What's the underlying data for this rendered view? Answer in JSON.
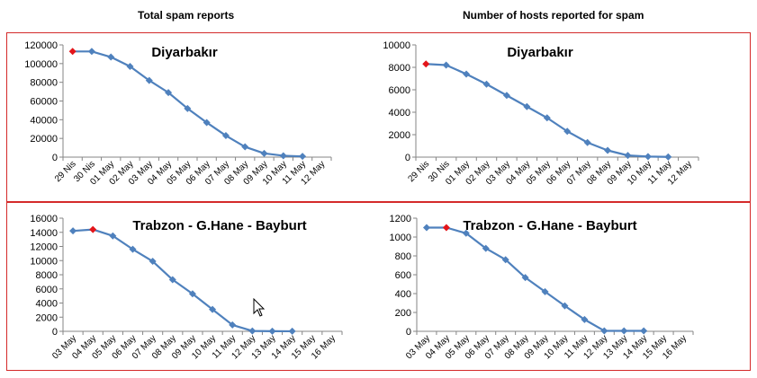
{
  "column_titles": {
    "left": "Total spam reports",
    "right": "Number of hosts reported for spam"
  },
  "colors": {
    "line": "#4f81bd",
    "highlight_marker": "#e3151a",
    "frame": "#d42a2a",
    "axis": "#868686"
  },
  "chart_data": [
    {
      "type": "line",
      "title": "Diyarbakır",
      "categories": [
        "29 Nis",
        "30 Nis",
        "01 May",
        "02 May",
        "03 May",
        "04 May",
        "05 May",
        "06 May",
        "07 May",
        "08 May",
        "09 May",
        "10 May",
        "11 May",
        "12 May"
      ],
      "series": [
        {
          "values": [
            113000,
            113000,
            107000,
            97000,
            82000,
            69000,
            52000,
            37000,
            23000,
            11000,
            4000,
            1500,
            800,
            null
          ]
        }
      ],
      "highlight_index": 0,
      "ylim": [
        0,
        120000
      ],
      "yticks": [
        0,
        20000,
        40000,
        60000,
        80000,
        100000,
        120000
      ],
      "ytick_labels": [
        "0",
        "20000",
        "40000",
        "60000",
        "80000",
        "100000",
        "120000"
      ],
      "grid": false,
      "xlabel": "",
      "ylabel": ""
    },
    {
      "type": "line",
      "title": "Diyarbakır",
      "categories": [
        "29 Nis",
        "30 Nis",
        "01 May",
        "02 May",
        "03 May",
        "04 May",
        "05 May",
        "06 May",
        "07 May",
        "08 May",
        "09 May",
        "10 May",
        "11 May",
        "12 May"
      ],
      "series": [
        {
          "values": [
            8300,
            8200,
            7400,
            6500,
            5500,
            4500,
            3500,
            2300,
            1300,
            600,
            150,
            50,
            20,
            null
          ]
        }
      ],
      "highlight_index": 0,
      "ylim": [
        0,
        10000
      ],
      "yticks": [
        0,
        2000,
        4000,
        6000,
        8000,
        10000
      ],
      "ytick_labels": [
        "0",
        "2000",
        "4000",
        "6000",
        "8000",
        "10000"
      ],
      "grid": false,
      "xlabel": "",
      "ylabel": ""
    },
    {
      "type": "line",
      "title": "Trabzon - G.Hane - Bayburt",
      "categories": [
        "03 May",
        "04 May",
        "05 May",
        "06 May",
        "07 May",
        "08 May",
        "09 May",
        "10 May",
        "11 May",
        "12 May",
        "13 May",
        "14 May",
        "15 May",
        "16 May"
      ],
      "series": [
        {
          "values": [
            14200,
            14400,
            13500,
            11600,
            9900,
            7300,
            5300,
            3100,
            900,
            50,
            20,
            10,
            null,
            null
          ]
        }
      ],
      "highlight_index": 1,
      "ylim": [
        0,
        16000
      ],
      "yticks": [
        0,
        2000,
        4000,
        6000,
        8000,
        10000,
        12000,
        14000,
        16000
      ],
      "ytick_labels": [
        "0",
        "2000",
        "4000",
        "6000",
        "8000",
        "10000",
        "12000",
        "14000",
        "16000"
      ],
      "grid": false,
      "xlabel": "",
      "ylabel": ""
    },
    {
      "type": "line",
      "title": "Trabzon - G.Hane - Bayburt",
      "categories": [
        "03 May",
        "04 May",
        "05 May",
        "06 May",
        "07 May",
        "08 May",
        "09 May",
        "10 May",
        "11 May",
        "12 May",
        "13 May",
        "14 May",
        "15 May",
        "16 May"
      ],
      "series": [
        {
          "values": [
            1100,
            1100,
            1040,
            880,
            760,
            570,
            420,
            270,
            125,
            5,
            5,
            5,
            null,
            null
          ]
        }
      ],
      "highlight_index": 1,
      "ylim": [
        0,
        1200
      ],
      "yticks": [
        0,
        200,
        400,
        600,
        800,
        1000,
        1200
      ],
      "ytick_labels": [
        "0",
        "200",
        "400",
        "600",
        "800",
        "1000",
        "1200"
      ],
      "grid": false,
      "xlabel": "",
      "ylabel": ""
    }
  ]
}
